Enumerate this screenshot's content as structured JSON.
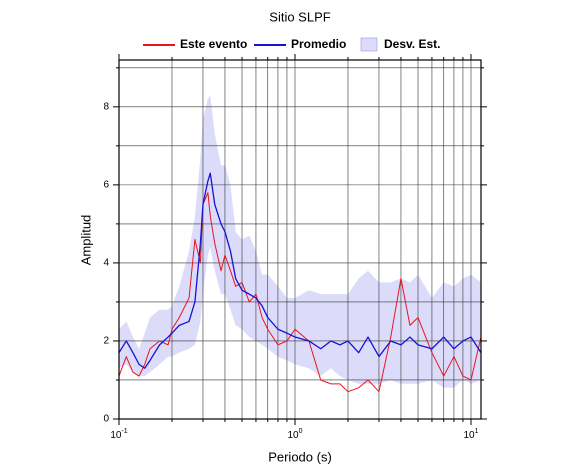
{
  "chart_data": {
    "type": "line",
    "title": "Sitio SLPF",
    "x_label": "Periodo (s)",
    "y_label": "Amplitud",
    "log_x": true,
    "grid": true,
    "xlim": [
      0.1,
      11.4
    ],
    "ylim": [
      0,
      9.2
    ],
    "xticks": [
      {
        "value": 0.1,
        "label": "10",
        "exponent": "-1"
      },
      {
        "value": 1,
        "label": "10",
        "exponent": "0"
      },
      {
        "value": 10,
        "label": "10",
        "exponent": "1"
      }
    ],
    "xminor": [
      0.2,
      0.3,
      0.4,
      0.5,
      0.6,
      0.7,
      0.8,
      0.9,
      2,
      3,
      4,
      5,
      6,
      7,
      8,
      9
    ],
    "yticks": [
      0,
      2,
      4,
      6,
      8
    ],
    "yminor": [
      1,
      3,
      5,
      7,
      9
    ],
    "x": [
      0.1,
      0.11,
      0.12,
      0.13,
      0.14,
      0.15,
      0.17,
      0.19,
      0.2,
      0.22,
      0.25,
      0.27,
      0.29,
      0.3,
      0.32,
      0.33,
      0.35,
      0.38,
      0.4,
      0.43,
      0.46,
      0.5,
      0.55,
      0.6,
      0.65,
      0.7,
      0.8,
      0.9,
      1.0,
      1.2,
      1.4,
      1.6,
      1.8,
      2.0,
      2.3,
      2.6,
      3.0,
      3.5,
      4.0,
      4.5,
      5,
      6,
      7,
      8,
      9,
      10,
      11.4
    ],
    "band": {
      "name": "Desv. Est.",
      "color": "#dcdcfa",
      "upper": [
        2.3,
        2.5,
        2.1,
        1.8,
        2.2,
        2.6,
        2.8,
        2.8,
        2.9,
        3.4,
        4.3,
        5.2,
        6.7,
        7.7,
        8.2,
        8.3,
        7.3,
        6.5,
        6.5,
        6.0,
        4.8,
        4.6,
        4.7,
        4.3,
        3.7,
        3.7,
        3.4,
        3.1,
        3.1,
        3.3,
        3.2,
        3.2,
        3.2,
        3.2,
        3.6,
        3.8,
        3.5,
        3.5,
        3.6,
        3.5,
        3.7,
        3.1,
        3.5,
        3.4,
        3.6,
        3.7,
        3.5
      ],
      "lower": [
        1.3,
        1.4,
        1.2,
        1.1,
        1.1,
        1.2,
        1.4,
        1.6,
        1.6,
        1.7,
        1.8,
        1.9,
        2.5,
        3.2,
        4.2,
        4.4,
        3.8,
        3.2,
        3.2,
        2.8,
        2.4,
        2.3,
        2.1,
        2.0,
        1.9,
        1.8,
        1.6,
        1.5,
        1.4,
        1.3,
        1.1,
        1.3,
        1.1,
        1.0,
        0.9,
        0.9,
        0.9,
        1.0,
        0.9,
        0.9,
        0.9,
        1.0,
        0.8,
        0.8,
        1.0,
        0.9,
        1.0
      ]
    },
    "series": [
      {
        "name": "Este evento",
        "color": "#e8141e",
        "values": [
          1.1,
          1.6,
          1.2,
          1.1,
          1.4,
          1.8,
          2.0,
          1.9,
          2.3,
          2.6,
          3.1,
          4.6,
          4.0,
          5.5,
          5.8,
          5.2,
          4.5,
          3.8,
          4.2,
          3.8,
          3.4,
          3.5,
          3.0,
          3.2,
          2.6,
          2.3,
          1.9,
          2.0,
          2.3,
          2.0,
          1.0,
          0.9,
          0.9,
          0.7,
          0.8,
          1.0,
          0.7,
          2.1,
          3.6,
          2.4,
          2.6,
          1.7,
          1.1,
          1.6,
          1.1,
          1.0,
          2.1
        ]
      },
      {
        "name": "Promedio",
        "color": "#1414d2",
        "values": [
          1.7,
          2.0,
          1.7,
          1.4,
          1.3,
          1.5,
          1.9,
          2.1,
          2.2,
          2.4,
          2.5,
          3.0,
          4.5,
          5.5,
          6.1,
          6.3,
          5.5,
          5.0,
          4.8,
          4.3,
          3.6,
          3.3,
          3.2,
          3.1,
          2.9,
          2.6,
          2.3,
          2.2,
          2.1,
          2.0,
          1.8,
          2.0,
          1.9,
          2.0,
          1.7,
          2.1,
          1.6,
          2.0,
          1.9,
          2.1,
          1.9,
          1.8,
          2.1,
          1.8,
          2.0,
          2.1,
          1.7
        ]
      }
    ]
  }
}
